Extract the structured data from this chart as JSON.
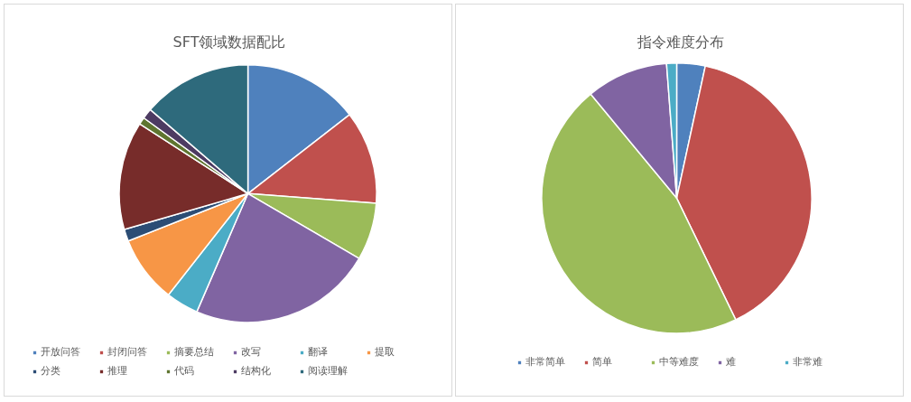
{
  "chart_data": [
    {
      "type": "pie",
      "title": "SFT领域数据配比",
      "categories": [
        "开放问答",
        "封闭问答",
        "摘要总结",
        "改写",
        "翻译",
        "提取",
        "分类",
        "推理",
        "代码",
        "结构化",
        "阅读理解"
      ],
      "values": [
        14.5,
        11.7,
        7.2,
        23.1,
        4.1,
        8.4,
        1.5,
        13.6,
        0.9,
        1.3,
        13.7
      ],
      "colors": [
        "#4f81bd",
        "#c0504d",
        "#9bbb59",
        "#8064a2",
        "#4bacc6",
        "#f79646",
        "#2c4d75",
        "#772c2a",
        "#5f7530",
        "#4d3b62",
        "#2e6a7c"
      ],
      "legend": "bottom"
    },
    {
      "type": "pie",
      "title": "指令难度分布",
      "categories": [
        "非常简单",
        "简单",
        "中等难度",
        "难",
        "非常难"
      ],
      "values": [
        3.4,
        39.4,
        46.2,
        9.8,
        1.2
      ],
      "colors": [
        "#4f81bd",
        "#c0504d",
        "#9bbb59",
        "#8064a2",
        "#4bacc6"
      ],
      "legend": "bottom"
    }
  ]
}
